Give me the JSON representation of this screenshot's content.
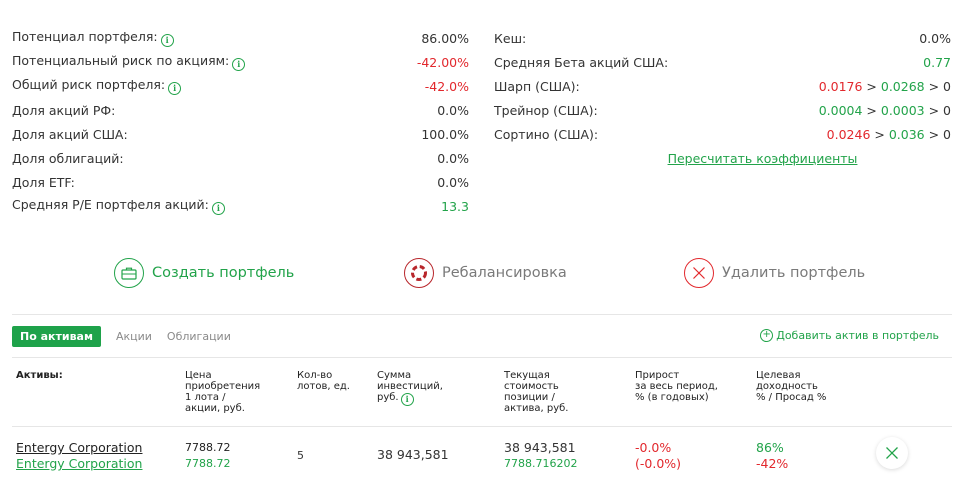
{
  "metrics_left": [
    {
      "label": "Потенциал портфеля:",
      "info": true,
      "value": "86.00%",
      "color": "gray"
    },
    {
      "label": "Потенциальный риск по акциям:",
      "info": true,
      "value": "-42.00%",
      "color": "red"
    },
    {
      "label": "Общий риск портфеля:",
      "info": true,
      "value": "-42.0%",
      "color": "red"
    },
    {
      "label": "Доля акций РФ:",
      "info": false,
      "value": "0.0%",
      "color": "gray"
    },
    {
      "label": "Доля акций США:",
      "info": false,
      "value": "100.0%",
      "color": "gray"
    },
    {
      "label": "Доля облигаций:",
      "info": false,
      "value": "0.0%",
      "color": "gray"
    },
    {
      "label": "Доля ETF:",
      "info": false,
      "value": "0.0%",
      "color": "gray"
    },
    {
      "label": "Средняя P/E портфеля акций:",
      "info": true,
      "value": "13.3",
      "color": "green"
    }
  ],
  "metrics_right": {
    "cash": {
      "label": "Кеш:",
      "value": "0.0%"
    },
    "beta": {
      "label": "Средняя Бета акций США:",
      "value": "0.77"
    },
    "sharpe": {
      "label": "Шарп (США):",
      "v1": "0.0176",
      "sep1": " > ",
      "v2": "0.0268",
      "sep2": " > ",
      "v3": "0"
    },
    "treynor": {
      "label": "Трейнор (США):",
      "v1": "0.0004",
      "sep1": " > ",
      "v2": "0.0003",
      "sep2": " > ",
      "v3": "0"
    },
    "sortino": {
      "label": "Сортино (США):",
      "v1": "0.0246",
      "sep1": " > ",
      "v2": "0.036",
      "sep2": " > ",
      "v3": "0"
    },
    "recalc": "Пересчитать коэффициенты"
  },
  "actions": {
    "create": "Создать портфель",
    "rebalance": "Ребалансировка",
    "delete": "Удалить портфель"
  },
  "tabs": [
    "По активам",
    "Акции",
    "Облигации"
  ],
  "add_asset": "Добавить актив в портфель",
  "table": {
    "headers": {
      "asset": "Активы:",
      "price": "Цена\nприобретения\n1 лота /\nакции, руб.",
      "lots": "Кол-во\nлотов, ед.",
      "sum": "Сумма\nинвестиций,\nруб.",
      "current": "Текущая\nстоимость\nпозиции /\nактива, руб.",
      "growth": "Прирост\nза весь период,\n% (в годовых)",
      "target": "Целевая\nдоходность\n% / Просад %"
    },
    "row": {
      "asset_name": "Entergy Corporation",
      "asset_name2": "Entergy Corporation",
      "price": "7788.72",
      "price2": "7788.72",
      "lots": "5",
      "sum": "38 943,581",
      "current": "38 943,581",
      "current2": "7788.716202",
      "growth": "-0.0%",
      "growth2": "(-0.0%)",
      "target": "86%",
      "drawdown": "-42%"
    }
  },
  "colors": {
    "accent": "#22a34a",
    "negative": "#e2282d",
    "tab_active": "#1ea24a"
  }
}
